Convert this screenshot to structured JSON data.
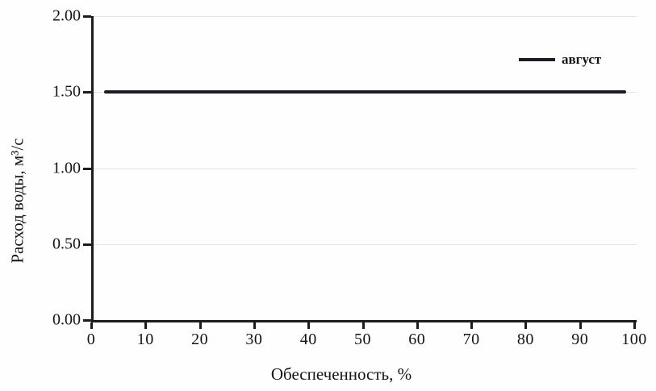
{
  "chart_data": {
    "type": "line",
    "title": "",
    "xlabel": "Обеспеченность, %",
    "ylabel": "Расход воды, м³/с",
    "xlim": [
      0,
      100
    ],
    "ylim": [
      0,
      2
    ],
    "x_ticks": [
      0,
      10,
      20,
      30,
      40,
      50,
      60,
      70,
      80,
      90,
      100
    ],
    "y_ticks": [
      {
        "value": 0,
        "label": "0.00"
      },
      {
        "value": 0.5,
        "label": "0.50"
      },
      {
        "value": 1,
        "label": "1.00"
      },
      {
        "value": 1.5,
        "label": "1.50"
      },
      {
        "value": 2,
        "label": "2.00"
      }
    ],
    "grid": "horizontal-faint",
    "legend_position": "upper-right-inside",
    "series": [
      {
        "name": "август",
        "color": "#1b1b26",
        "x": [
          2,
          98
        ],
        "y": [
          1.5,
          1.5
        ]
      }
    ]
  },
  "colors": {
    "axis": "#1c1c1c",
    "text": "#141414",
    "gridline": "#dde6f0",
    "background": "#fefefe",
    "series_august": "#1b1b26"
  }
}
